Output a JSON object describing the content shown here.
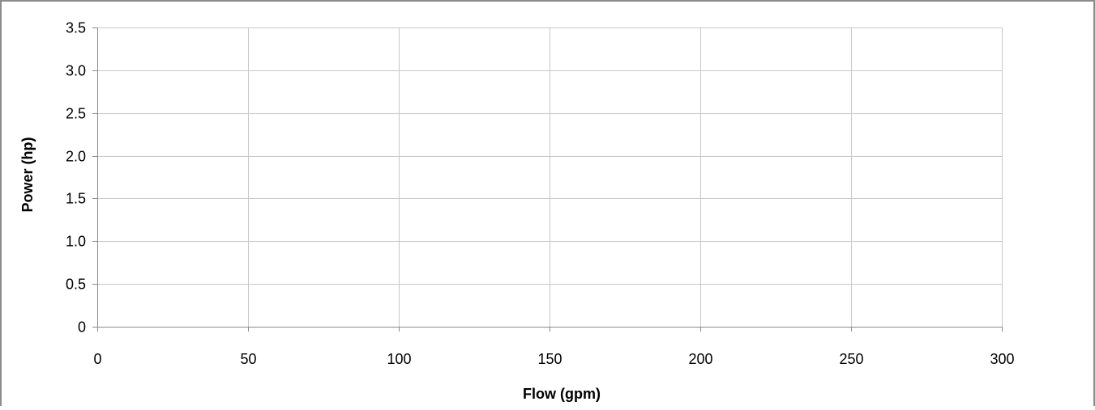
{
  "chart_data": {
    "type": "scatter",
    "title": "",
    "xlabel": "Flow (gpm)",
    "ylabel": "Power (hp)",
    "xlim": [
      0,
      300
    ],
    "ylim": [
      0,
      3.5
    ],
    "x_ticks": [
      {
        "value": 0,
        "label": "0"
      },
      {
        "value": 50,
        "label": "50"
      },
      {
        "value": 100,
        "label": "100"
      },
      {
        "value": 150,
        "label": "150"
      },
      {
        "value": 200,
        "label": "200"
      },
      {
        "value": 250,
        "label": "250"
      },
      {
        "value": 300,
        "label": "300"
      }
    ],
    "y_ticks": [
      {
        "value": 0,
        "label": "0"
      },
      {
        "value": 0.5,
        "label": "0.5"
      },
      {
        "value": 1.0,
        "label": "1.0"
      },
      {
        "value": 1.5,
        "label": "1.5"
      },
      {
        "value": 2.0,
        "label": "2.0"
      },
      {
        "value": 2.5,
        "label": "2.5"
      },
      {
        "value": 3.0,
        "label": "3.0"
      },
      {
        "value": 3.5,
        "label": "3.5"
      }
    ],
    "grid": true,
    "legend": "none",
    "series": [],
    "colors": {
      "gridline": "#c8c8c8",
      "axis": "#8c8c8c",
      "frame": "#8c8c8c",
      "text": "#000000"
    }
  }
}
